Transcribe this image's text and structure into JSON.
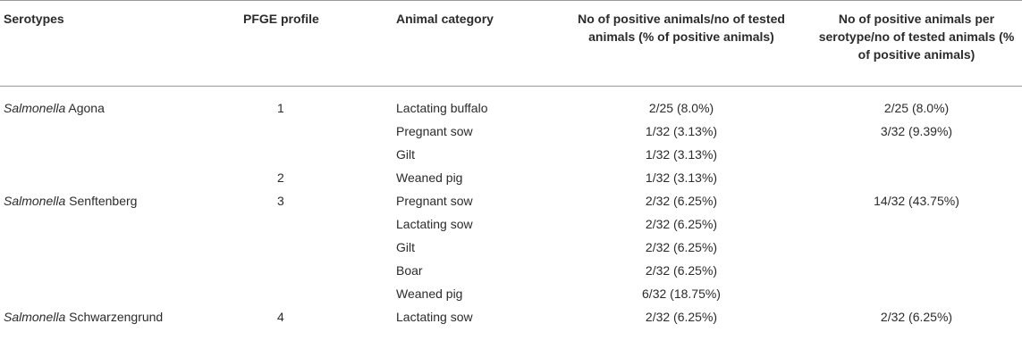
{
  "headers": {
    "serotypes": "Serotypes",
    "pfge_profile": "PFGE profile",
    "animal_category": "Animal category",
    "positive_per_tested": "No of positive animals/no of tested animals (% of positive animals)",
    "positive_per_serotype": "No of positive animals per serotype/no of tested animals (% of positive animals)"
  },
  "rows": [
    {
      "genus": "Salmonella",
      "serovar": " Agona",
      "pfge": "1",
      "animal": "Lactating buffalo",
      "positive": "2/25 (8.0%)",
      "per_serotype": "2/25 (8.0%)"
    },
    {
      "genus": "",
      "serovar": "",
      "pfge": "",
      "animal": "Pregnant sow",
      "positive": "1/32 (3.13%)",
      "per_serotype": "3/32 (9.39%)"
    },
    {
      "genus": "",
      "serovar": "",
      "pfge": "",
      "animal": "Gilt",
      "positive": "1/32 (3.13%)",
      "per_serotype": ""
    },
    {
      "genus": "",
      "serovar": "",
      "pfge": "2",
      "animal": "Weaned pig",
      "positive": "1/32 (3.13%)",
      "per_serotype": ""
    },
    {
      "genus": "Salmonella",
      "serovar": " Senftenberg",
      "pfge": "3",
      "animal": "Pregnant sow",
      "positive": "2/32 (6.25%)",
      "per_serotype": "14/32 (43.75%)"
    },
    {
      "genus": "",
      "serovar": "",
      "pfge": "",
      "animal": "Lactating sow",
      "positive": "2/32 (6.25%)",
      "per_serotype": ""
    },
    {
      "genus": "",
      "serovar": "",
      "pfge": "",
      "animal": "Gilt",
      "positive": "2/32 (6.25%)",
      "per_serotype": ""
    },
    {
      "genus": "",
      "serovar": "",
      "pfge": "",
      "animal": "Boar",
      "positive": "2/32 (6.25%)",
      "per_serotype": ""
    },
    {
      "genus": "",
      "serovar": "",
      "pfge": "",
      "animal": "Weaned pig",
      "positive": "6/32 (18.75%)",
      "per_serotype": ""
    },
    {
      "genus": "Salmonella",
      "serovar": " Schwarzengrund",
      "pfge": "4",
      "animal": "Lactating sow",
      "positive": "2/32 (6.25%)",
      "per_serotype": "2/32 (6.25%)"
    }
  ]
}
